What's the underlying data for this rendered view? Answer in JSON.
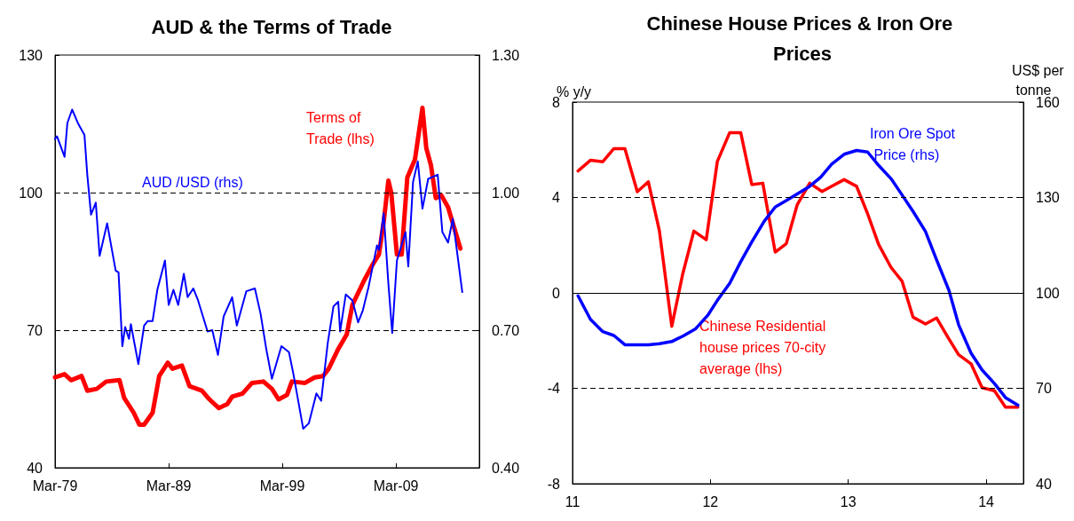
{
  "chart_data": [
    {
      "type": "line",
      "title": "AUD & the Terms of Trade",
      "legend": false,
      "grid": false,
      "xlim": [
        "1979-03",
        "2016-07"
      ],
      "xticks": [
        {
          "value": "1979-03",
          "label": "Mar-79"
        },
        {
          "value": "1989-03",
          "label": "Mar-89"
        },
        {
          "value": "1999-03",
          "label": "Mar-99"
        },
        {
          "value": "2009-03",
          "label": "Mar-09"
        }
      ],
      "ylim": [
        40,
        130
      ],
      "yticks": [
        40,
        70,
        100,
        130
      ],
      "y2lim": [
        0.4,
        1.3
      ],
      "y2ticks": [
        {
          "value": 0.4,
          "label": "0.40"
        },
        {
          "value": 0.7,
          "label": "0.70"
        },
        {
          "value": 1.0,
          "label": "1.00"
        },
        {
          "value": 1.3,
          "label": "1.30"
        }
      ],
      "ref_lines": [
        {
          "axis": "y",
          "value": 100,
          "color": "#000000",
          "line_style": "dashed"
        },
        {
          "axis": "y",
          "value": 70,
          "color": "#000000",
          "line_style": "dashed"
        }
      ],
      "series": [
        {
          "name": "Terms of Trade (lhs)",
          "color": "#ff0000",
          "x": [
            "1979-03",
            "1980-01",
            "1980-08",
            "1981-07",
            "1982-01",
            "1982-11",
            "1983-09",
            "1984-11",
            "1985-04",
            "1986-02",
            "1986-08",
            "1987-01",
            "1987-10",
            "1988-05",
            "1989-02",
            "1989-07",
            "1990-05",
            "1991-01",
            "1992-02",
            "1992-10",
            "1993-08",
            "1994-05",
            "1994-10",
            "1995-09",
            "1996-07",
            "1997-07",
            "1998-04",
            "1998-11",
            "1999-08",
            "2000-01",
            "2001-03",
            "2002-01",
            "2002-10",
            "2003-04",
            "2004-02",
            "2004-11",
            "2005-05",
            "2006-05",
            "2007-02",
            "2007-09",
            "2008-02",
            "2008-07",
            "2008-10",
            "2009-04",
            "2009-09",
            "2010-03",
            "2010-11",
            "2011-07",
            "2011-11",
            "2012-04",
            "2012-09",
            "2013-03",
            "2013-10",
            "2014-11"
          ],
          "values": [
            59.7,
            60.4,
            59.1,
            60.0,
            56.8,
            57.2,
            58.8,
            59.1,
            55.2,
            52.0,
            49.4,
            49.4,
            52.0,
            60.0,
            62.9,
            61.6,
            62.3,
            57.8,
            56.8,
            54.9,
            53.0,
            53.9,
            55.5,
            56.2,
            58.5,
            58.8,
            57.2,
            54.9,
            55.9,
            58.8,
            58.5,
            59.7,
            60.0,
            61.6,
            65.9,
            69.1,
            75.5,
            80.7,
            84.2,
            86.5,
            93.6,
            102.6,
            100.0,
            86.5,
            86.5,
            103.3,
            107.2,
            118.5,
            109.7,
            105.9,
            98.8,
            99.4,
            96.8,
            87.8
          ]
        },
        {
          "name": "AUD /USD (rhs)",
          "color": "#0000ff",
          "axis": "y2",
          "x": [
            "1979-03",
            "1979-05",
            "1980-01",
            "1980-04",
            "1980-09",
            "1981-03",
            "1981-10",
            "1982-01",
            "1982-05",
            "1982-10",
            "1983-02",
            "1983-10",
            "1984-07",
            "1984-10",
            "1985-02",
            "1985-05",
            "1985-09",
            "1985-11",
            "1986-07",
            "1987-01",
            "1987-05",
            "1987-10",
            "1988-03",
            "1988-11",
            "1989-03",
            "1989-08",
            "1990-01",
            "1990-07",
            "1990-11",
            "1991-05",
            "1991-10",
            "1992-08",
            "1993-01",
            "1993-07",
            "1994-01",
            "1994-10",
            "1995-03",
            "1996-01",
            "1996-10",
            "1997-04",
            "1997-10",
            "1998-04",
            "1999-02",
            "1999-10",
            "2000-03",
            "2000-08",
            "2001-01",
            "2001-07",
            "2002-03",
            "2002-08",
            "2003-03",
            "2003-09",
            "2004-02",
            "2004-04",
            "2004-10",
            "2005-05",
            "2005-11",
            "2006-04",
            "2006-10",
            "2007-07",
            "2007-09",
            "2008-02",
            "2008-07",
            "2008-11",
            "2009-04",
            "2010-01",
            "2010-04",
            "2010-09",
            "2011-02",
            "2011-07",
            "2012-01",
            "2012-11",
            "2013-04",
            "2013-10",
            "2014-03",
            "2015-01"
          ],
          "values": [
            1.117,
            1.123,
            1.078,
            1.152,
            1.181,
            1.152,
            1.126,
            1.039,
            0.952,
            0.978,
            0.862,
            0.933,
            0.83,
            0.826,
            0.665,
            0.707,
            0.681,
            0.713,
            0.626,
            0.71,
            0.72,
            0.72,
            0.788,
            0.852,
            0.755,
            0.788,
            0.755,
            0.823,
            0.772,
            0.791,
            0.765,
            0.697,
            0.7,
            0.646,
            0.73,
            0.772,
            0.71,
            0.785,
            0.791,
            0.736,
            0.659,
            0.594,
            0.665,
            0.652,
            0.601,
            0.543,
            0.485,
            0.497,
            0.562,
            0.546,
            0.672,
            0.752,
            0.762,
            0.697,
            0.778,
            0.765,
            0.717,
            0.743,
            0.794,
            0.885,
            0.875,
            0.955,
            0.801,
            0.694,
            0.852,
            0.914,
            0.839,
            1.023,
            1.068,
            0.965,
            1.03,
            1.039,
            0.914,
            0.891,
            0.943,
            0.783
          ]
        }
      ]
    },
    {
      "type": "line",
      "title": "Chinese House Prices & Iron Ore Prices",
      "ylabel": "% y/y",
      "y2label": "US$ per tonne",
      "legend": false,
      "grid": false,
      "xlim": [
        11,
        14.27
      ],
      "xticks": [
        11,
        12,
        13,
        14
      ],
      "ylim": [
        -8,
        8
      ],
      "yticks": [
        -8,
        -4,
        0,
        4,
        8
      ],
      "y2lim": [
        40,
        160
      ],
      "y2ticks": [
        40,
        70,
        100,
        130,
        160
      ],
      "ref_lines": [
        {
          "axis": "y",
          "value": 4,
          "color": "#000000",
          "line_style": "dashed"
        },
        {
          "axis": "y",
          "value": -4,
          "color": "#000000",
          "line_style": "dashed"
        },
        {
          "axis": "y",
          "value": 0,
          "color": "#000000",
          "line_style": "solid"
        }
      ],
      "series": [
        {
          "name": "Chinese Residential house prices 70-city average (lhs)",
          "color": "#ff0000",
          "x": [
            11.04,
            11.13,
            11.22,
            11.3,
            11.38,
            11.47,
            11.55,
            11.63,
            11.72,
            11.8,
            11.88,
            11.97,
            12.05,
            12.14,
            12.22,
            12.3,
            12.38,
            12.47,
            12.55,
            12.63,
            12.72,
            12.81,
            12.89,
            12.97,
            13.06,
            13.14,
            13.22,
            13.31,
            13.39,
            13.47,
            13.56,
            13.64,
            13.72,
            13.8,
            13.89,
            13.97,
            14.06,
            14.14,
            14.23
          ],
          "values": [
            5.11,
            5.56,
            5.5,
            6.05,
            6.05,
            4.24,
            4.66,
            2.61,
            -1.4,
            0.81,
            2.59,
            2.23,
            5.5,
            6.72,
            6.72,
            4.54,
            4.6,
            1.71,
            2.06,
            3.7,
            4.6,
            4.25,
            4.5,
            4.75,
            4.47,
            3.32,
            2.03,
            1.07,
            0.49,
            -1.02,
            -1.3,
            -1.05,
            -1.84,
            -2.59,
            -2.97,
            -3.97,
            -4.1,
            -4.79,
            -4.79
          ]
        },
        {
          "name": "Iron Ore Spot Price (rhs)",
          "color": "#0000ff",
          "axis": "y2",
          "x": [
            11.04,
            11.13,
            11.22,
            11.3,
            11.38,
            11.47,
            11.55,
            11.63,
            11.72,
            11.8,
            11.89,
            11.98,
            12.05,
            12.14,
            12.22,
            12.3,
            12.39,
            12.47,
            12.55,
            12.63,
            12.72,
            12.8,
            12.88,
            12.97,
            13.06,
            13.14,
            13.22,
            13.31,
            13.39,
            13.47,
            13.56,
            13.64,
            13.73,
            13.8,
            13.89,
            13.97,
            14.06,
            14.14,
            14.23
          ],
          "values": [
            99.1,
            91.7,
            87.8,
            86.6,
            83.7,
            83.7,
            83.7,
            84.0,
            84.7,
            86.4,
            88.6,
            92.9,
            97.6,
            103.0,
            109.8,
            116.0,
            122.5,
            127.0,
            129.0,
            131.1,
            133.5,
            136.4,
            140.5,
            143.6,
            144.8,
            144.3,
            140.1,
            135.9,
            130.8,
            125.6,
            119.3,
            110.4,
            100.8,
            90.0,
            81.1,
            75.8,
            71.5,
            67.1,
            64.7
          ]
        }
      ]
    }
  ]
}
